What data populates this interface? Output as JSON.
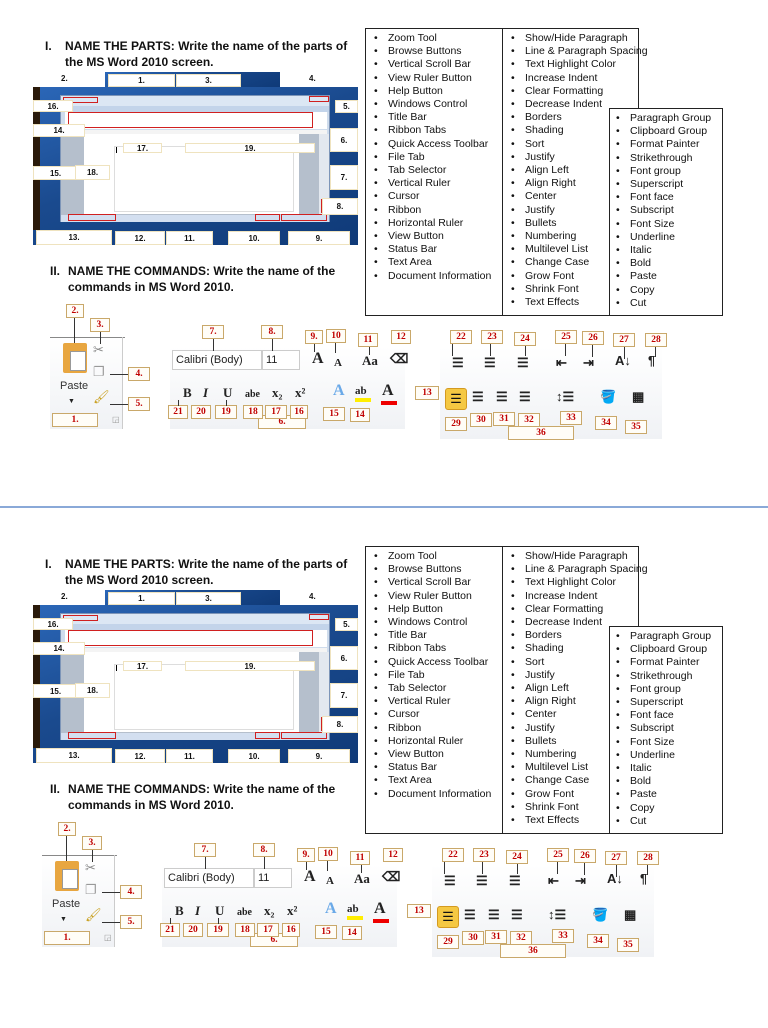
{
  "part1": {
    "numeral": "I.",
    "title": "NAME THE PARTS:",
    "text": " Write the name of the parts of",
    "text2": "the MS Word 2010 screen."
  },
  "part2": {
    "numeral": "II.",
    "title": "NAME THE COMMANDS:",
    "text": " Write the name of the",
    "text2": "commands in MS Word 2010."
  },
  "screen_labels": [
    "1.",
    "2.",
    "3.",
    "4.",
    "5.",
    "6.",
    "7.",
    "8.",
    "9.",
    "10.",
    "11.",
    "12.",
    "13.",
    "14.",
    "15.",
    "16.",
    "17.",
    "18.",
    "19."
  ],
  "ribbon": {
    "paste": "Paste",
    "font_face": "Calibri (Body)",
    "font_size": "11"
  },
  "command_labels": [
    "1.",
    "2.",
    "3.",
    "4.",
    "5.",
    "6.",
    "7.",
    "8.",
    "9.",
    "10",
    "11",
    "12",
    "13",
    "14",
    "15",
    "16",
    "17",
    "18",
    "19",
    "20",
    "21",
    "22",
    "23",
    "24",
    "25",
    "26",
    "27",
    "28",
    "29",
    "30",
    "31",
    "32",
    "33",
    "34",
    "35",
    "36"
  ],
  "word_bank": {
    "column1": [
      "Zoom Tool",
      "Browse Buttons",
      "Vertical Scroll Bar",
      "View Ruler Button",
      "Help Button",
      "Windows Control",
      "Title Bar",
      "Ribbon Tabs",
      "Quick Access Toolbar",
      "File Tab",
      "Tab Selector",
      "Vertical Ruler",
      "Cursor",
      "Ribbon",
      "Horizontal Ruler",
      "View Button",
      "Status Bar",
      "Text Area",
      "Document Information"
    ],
    "column2": [
      "Show/Hide Paragraph",
      "Line & Paragraph Spacing",
      "Text Highlight Color",
      "Increase Indent",
      "Clear Formatting",
      "Decrease Indent",
      "Borders",
      "Shading",
      "Sort",
      "Justify",
      "Align Left",
      "Align Right",
      "Center",
      "Justify",
      "Bullets",
      "Numbering",
      "Multilevel List",
      "Change Case",
      "Grow Font",
      "Shrink Font",
      "Text Effects"
    ],
    "column3": [
      "Paragraph Group",
      "Clipboard Group",
      "Format Painter",
      "Strikethrough",
      "Font group",
      "Superscript",
      "Font face",
      "Subscript",
      "Font Size",
      "Underline",
      "Italic",
      "Bold",
      "Paste",
      "Copy",
      "Cut"
    ]
  },
  "colors": {
    "label_text": "#c00000",
    "separator": "#8aa9d8",
    "desktop_blue": "#1a4a8e",
    "highlight": "#f5c842"
  }
}
